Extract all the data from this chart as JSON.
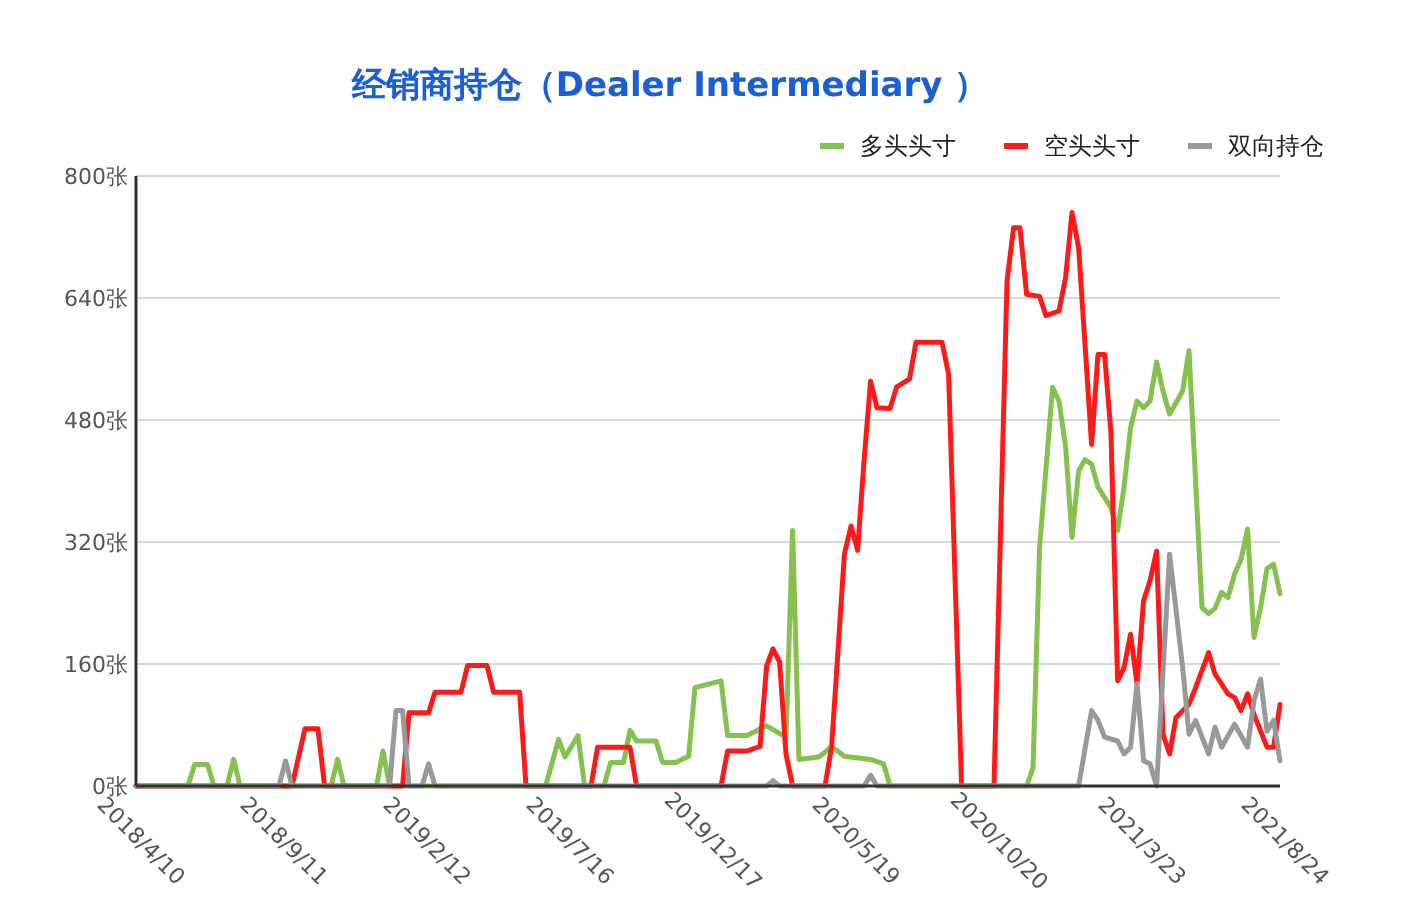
{
  "chart_data": {
    "type": "line",
    "title": "经销商持仓（Dealer Intermediary ）",
    "xlim": [
      "2018-04-10",
      "2021-08-24"
    ],
    "xticks": [
      {
        "value": "2018-04-10",
        "label": "2018/4/10"
      },
      {
        "value": "2018-09-11",
        "label": "2018/9/11"
      },
      {
        "value": "2019-02-12",
        "label": "2019/2/12"
      },
      {
        "value": "2019-07-16",
        "label": "2019/7/16"
      },
      {
        "value": "2019-12-17",
        "label": "2019/12/17"
      },
      {
        "value": "2020-05-19",
        "label": "2020/5/19"
      },
      {
        "value": "2020-10-20",
        "label": "2020/10/20"
      },
      {
        "value": "2021-03-23",
        "label": "2021/3/23"
      },
      {
        "value": "2021-08-24",
        "label": "2021/8/24"
      }
    ],
    "ylim": [
      0,
      800
    ],
    "yticks": [
      {
        "value": 0,
        "label": "0张"
      },
      {
        "value": 160,
        "label": "160张"
      },
      {
        "value": 320,
        "label": "320张"
      },
      {
        "value": 480,
        "label": "480张"
      },
      {
        "value": 640,
        "label": "640张"
      },
      {
        "value": 800,
        "label": "800张"
      }
    ],
    "grid": "y",
    "legend": "top right",
    "marker": "none",
    "line_style": "solid",
    "series": [
      {
        "name": "多头头寸",
        "color": "#86c04f",
        "x": [
          "2018-04-10",
          "2018-06-05",
          "2018-06-12",
          "2018-06-26",
          "2018-07-03",
          "2018-07-17",
          "2018-07-24",
          "2018-07-31",
          "2018-11-06",
          "2018-11-13",
          "2018-11-20",
          "2018-12-25",
          "2019-01-01",
          "2019-01-08",
          "2019-06-25",
          "2019-07-09",
          "2019-07-16",
          "2019-07-30",
          "2019-08-06",
          "2019-08-27",
          "2019-09-03",
          "2019-09-17",
          "2019-09-24",
          "2019-10-01",
          "2019-10-22",
          "2019-10-29",
          "2019-11-12",
          "2019-11-26",
          "2019-12-03",
          "2019-12-31",
          "2020-01-07",
          "2020-01-28",
          "2020-02-18",
          "2020-03-10",
          "2020-03-17",
          "2020-03-24",
          "2020-04-14",
          "2020-04-21",
          "2020-04-28",
          "2020-05-12",
          "2020-06-09",
          "2020-06-23",
          "2020-06-30",
          "2020-11-24",
          "2020-12-01",
          "2020-12-08",
          "2020-12-22",
          "2020-12-29",
          "2021-01-05",
          "2021-01-12",
          "2021-01-19",
          "2021-01-26",
          "2021-02-02",
          "2021-02-09",
          "2021-02-23",
          "2021-03-02",
          "2021-03-09",
          "2021-03-16",
          "2021-03-23",
          "2021-03-30",
          "2021-04-06",
          "2021-04-13",
          "2021-04-20",
          "2021-04-27",
          "2021-05-11",
          "2021-05-18",
          "2021-06-01",
          "2021-06-08",
          "2021-06-15",
          "2021-06-22",
          "2021-06-29",
          "2021-07-06",
          "2021-07-13",
          "2021-07-20",
          "2021-07-27",
          "2021-08-03",
          "2021-08-10",
          "2021-08-17",
          "2021-08-24"
        ],
        "values": [
          0,
          0,
          28,
          28,
          0,
          0,
          35,
          0,
          0,
          35,
          0,
          0,
          46,
          0,
          0,
          61,
          38,
          66,
          0,
          0,
          31,
          31,
          73,
          59,
          59,
          31,
          31,
          39,
          129,
          138,
          66,
          66,
          79,
          64,
          335,
          35,
          38,
          44,
          52,
          39,
          35,
          29,
          0,
          0,
          24,
          313,
          523,
          505,
          445,
          326,
          413,
          428,
          422,
          392,
          365,
          335,
          392,
          470,
          505,
          496,
          505,
          556,
          518,
          488,
          518,
          571,
          234,
          226,
          233,
          254,
          247,
          278,
          297,
          337,
          195,
          234,
          285,
          291,
          252
        ]
      },
      {
        "name": "空头头寸",
        "color": "#ff1a1a",
        "x": [
          "2018-04-10",
          "2018-09-25",
          "2018-10-09",
          "2018-10-23",
          "2018-10-30",
          "2019-01-22",
          "2019-01-29",
          "2019-02-19",
          "2019-02-26",
          "2019-03-26",
          "2019-04-02",
          "2019-04-23",
          "2019-04-30",
          "2019-05-28",
          "2019-06-04",
          "2019-08-13",
          "2019-08-20",
          "2019-09-24",
          "2019-10-01",
          "2019-12-31",
          "2020-01-07",
          "2020-01-28",
          "2020-02-11",
          "2020-02-18",
          "2020-02-25",
          "2020-03-03",
          "2020-03-10",
          "2020-03-17",
          "2020-04-21",
          "2020-04-28",
          "2020-05-12",
          "2020-05-19",
          "2020-05-26",
          "2020-06-02",
          "2020-06-09",
          "2020-06-16",
          "2020-06-30",
          "2020-07-07",
          "2020-07-21",
          "2020-07-28",
          "2020-08-25",
          "2020-09-01",
          "2020-09-15",
          "2020-10-20",
          "2020-11-03",
          "2020-11-10",
          "2020-11-17",
          "2020-11-24",
          "2020-12-08",
          "2020-12-15",
          "2020-12-29",
          "2021-01-05",
          "2021-01-12",
          "2021-01-19",
          "2021-02-02",
          "2021-02-09",
          "2021-02-16",
          "2021-02-23",
          "2021-03-02",
          "2021-03-09",
          "2021-03-16",
          "2021-03-23",
          "2021-03-30",
          "2021-04-06",
          "2021-04-13",
          "2021-04-20",
          "2021-04-27",
          "2021-05-04",
          "2021-05-18",
          "2021-05-25",
          "2021-06-08",
          "2021-06-15",
          "2021-06-29",
          "2021-07-06",
          "2021-07-13",
          "2021-07-20",
          "2021-07-27",
          "2021-08-10",
          "2021-08-17",
          "2021-08-24"
        ],
        "values": [
          0,
          0,
          75,
          75,
          0,
          0,
          96,
          96,
          123,
          123,
          158,
          158,
          123,
          123,
          0,
          0,
          51,
          51,
          0,
          0,
          46,
          46,
          52,
          157,
          180,
          163,
          42,
          0,
          0,
          51,
          304,
          341,
          309,
          426,
          531,
          496,
          495,
          523,
          534,
          582,
          582,
          540,
          0,
          0,
          662,
          732,
          732,
          645,
          642,
          617,
          623,
          667,
          752,
          706,
          448,
          566,
          566,
          462,
          138,
          155,
          199,
          134,
          243,
          269,
          308,
          68,
          42,
          90,
          107,
          129,
          175,
          147,
          121,
          116,
          99,
          121,
          94,
          51,
          51,
          107
        ]
      },
      {
        "name": "双向持仓",
        "color": "#999999",
        "x": [
          "2018-04-10",
          "2018-09-11",
          "2018-09-18",
          "2018-09-25",
          "2019-01-08",
          "2019-01-15",
          "2019-01-22",
          "2019-01-29",
          "2019-02-12",
          "2019-02-19",
          "2019-02-26",
          "2020-02-18",
          "2020-02-25",
          "2020-03-03",
          "2020-06-02",
          "2020-06-09",
          "2020-06-16",
          "2021-01-19",
          "2021-02-02",
          "2021-02-09",
          "2021-02-16",
          "2021-03-02",
          "2021-03-09",
          "2021-03-16",
          "2021-03-23",
          "2021-03-30",
          "2021-04-06",
          "2021-04-13",
          "2021-04-27",
          "2021-05-11",
          "2021-05-18",
          "2021-05-25",
          "2021-06-08",
          "2021-06-15",
          "2021-06-22",
          "2021-07-06",
          "2021-07-20",
          "2021-07-27",
          "2021-08-03",
          "2021-08-10",
          "2021-08-17",
          "2021-08-24"
        ],
        "values": [
          0,
          0,
          33,
          0,
          0,
          99,
          99,
          0,
          0,
          29,
          0,
          0,
          7,
          0,
          0,
          14,
          0,
          0,
          99,
          86,
          64,
          59,
          42,
          51,
          134,
          33,
          29,
          0,
          304,
          156,
          68,
          86,
          42,
          77,
          51,
          81,
          51,
          112,
          140,
          72,
          86,
          33
        ]
      }
    ]
  }
}
